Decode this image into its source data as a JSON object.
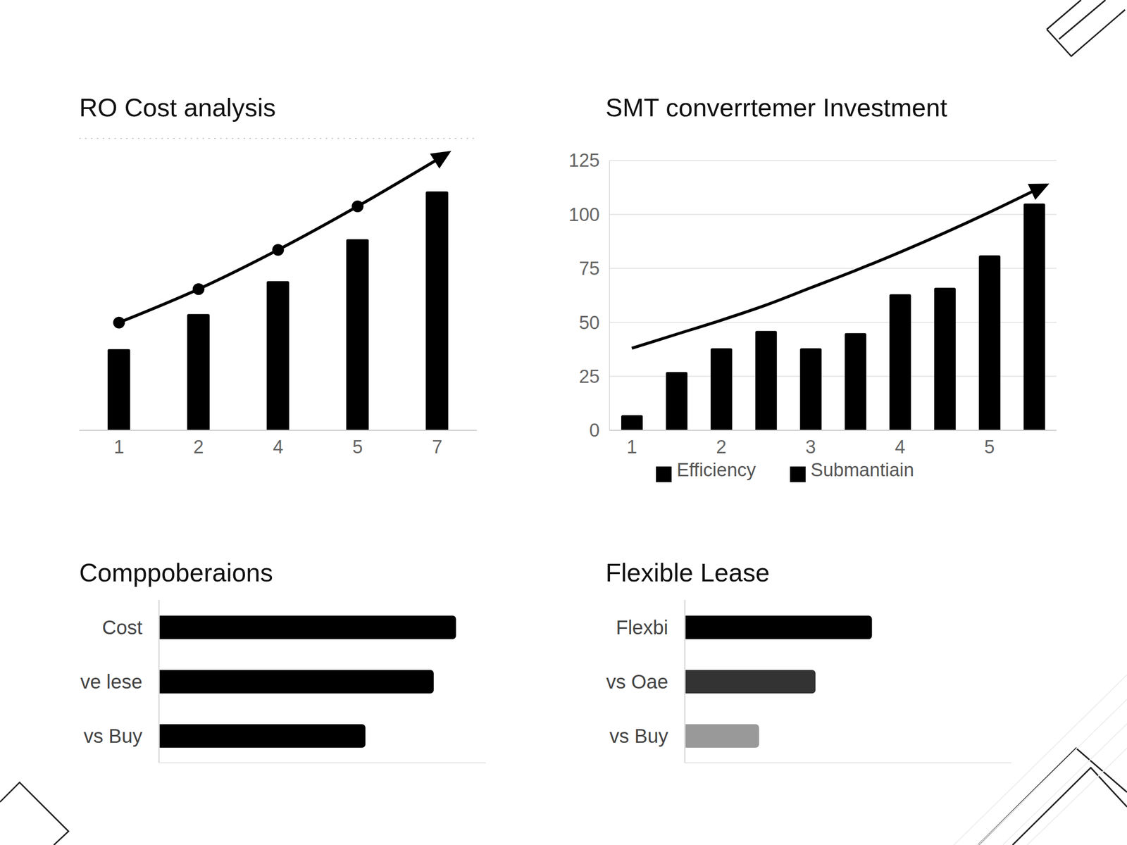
{
  "chart_data": [
    {
      "type": "bar",
      "title": "RO Cost analysis",
      "categories": [
        "1",
        "2",
        "4",
        "5",
        "7"
      ],
      "series": [
        {
          "type": "bar",
          "color": "#000000",
          "values": [
            1.53,
            2.19,
            2.81,
            3.6,
            4.5
          ]
        },
        {
          "type": "line",
          "color": "#000000",
          "marker": "circle",
          "values": [
            2.03,
            2.66,
            3.4,
            4.22,
            5.1
          ]
        }
      ],
      "ylim": [
        0,
        5.5
      ],
      "yticks": [
        0,
        1,
        2,
        3,
        4,
        5
      ],
      "grid": true,
      "tick_labels": "x"
    },
    {
      "type": "bar",
      "title": "SMT converrtemer Investment",
      "categories": [
        "1",
        null,
        "2",
        null,
        "3",
        null,
        "4",
        null,
        "5",
        null
      ],
      "series": [
        {
          "name": "Efficiency",
          "type": "bar",
          "color": "#000000",
          "values": [
            7,
            27,
            38,
            46,
            38,
            45,
            63,
            66,
            81,
            105
          ]
        },
        {
          "name": "Submantiain",
          "type": "line",
          "color": "#000000",
          "values": [
            38,
            44.5,
            51,
            58,
            66,
            74,
            82.5,
            91.5,
            101,
            111
          ]
        }
      ],
      "ylim": [
        0,
        125
      ],
      "yticks": [
        0,
        25,
        50,
        75,
        100,
        125
      ],
      "grid": true,
      "legend": "bottom"
    },
    {
      "type": "bar",
      "orientation": "horizontal",
      "title": "Comppoberaions",
      "categories": [
        "Cost",
        "ve lese",
        "vs Buy"
      ],
      "values": [
        100,
        92.5,
        69.5
      ],
      "color": "#000000",
      "xlim": [
        0,
        110
      ],
      "tick_labels": "y"
    },
    {
      "type": "bar",
      "orientation": "horizontal",
      "title": "Flexible Lease",
      "categories": [
        "Flexbi",
        "vs Oae",
        "vs Buy"
      ],
      "values": [
        63,
        44,
        25
      ],
      "colors": [
        "#000000",
        "#333333",
        "#999999"
      ],
      "xlim": [
        0,
        110
      ],
      "tick_labels": "y"
    }
  ]
}
